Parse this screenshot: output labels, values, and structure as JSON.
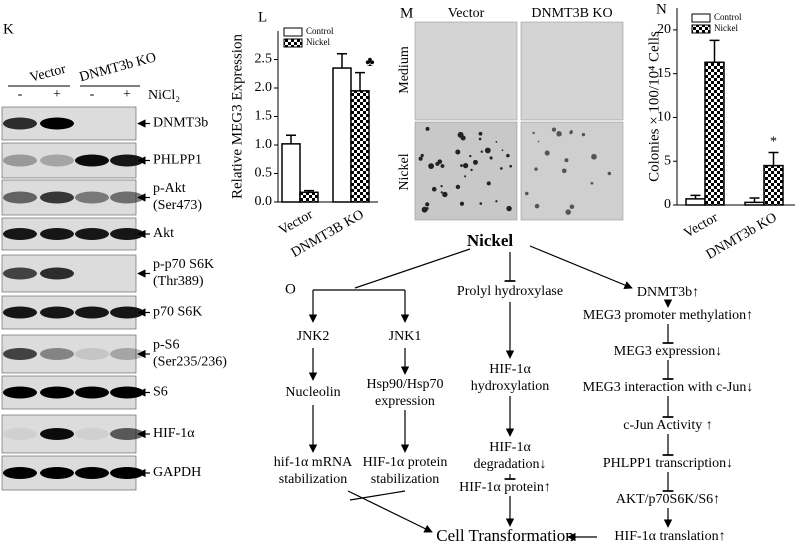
{
  "panel_labels": [
    "K",
    "L",
    "M",
    "N",
    "O"
  ],
  "blot": {
    "groups": [
      "Vector",
      "DNMT3b KO"
    ],
    "treatment": "NiCl₂",
    "lanes": [
      "-",
      "+",
      "-",
      "+"
    ],
    "rows": [
      [
        "DNMT3b"
      ],
      [
        "PHLPP1"
      ],
      [
        "p-Akt",
        "(Ser473)"
      ],
      [
        "Akt"
      ],
      [
        "p-p70 S6K",
        "(Thr389)"
      ],
      [
        "p70 S6K"
      ],
      [
        "p-S6",
        "(Ser235/236)"
      ],
      [
        "S6"
      ],
      [
        "HIF-1α"
      ],
      [
        "GAPDH"
      ]
    ]
  },
  "micrographs": {
    "columns": [
      "Vector",
      "DNMT3B KO"
    ],
    "rows": [
      "Medium",
      "Nickel"
    ]
  },
  "diagram": {
    "nodes": [
      [
        "Nickel"
      ],
      [
        "JNK2"
      ],
      [
        "JNK1"
      ],
      [
        "Nucleolin"
      ],
      [
        "Hsp90/Hsp70",
        "expression"
      ],
      [
        "hif-1α mRNA",
        "stabilization"
      ],
      [
        "HIF-1α protein",
        "stabilization"
      ],
      [
        "Prolyl hydroxylase"
      ],
      [
        "HIF-1α",
        "hydroxylation"
      ],
      [
        "HIF-1α",
        "degradation↓"
      ],
      [
        "HIF-1α protein↑"
      ],
      [
        "DNMT3b↑"
      ],
      [
        "MEG3 promoter methylation↑"
      ],
      [
        "MEG3 expression↓"
      ],
      [
        "MEG3 interaction with c-Jun↓"
      ],
      [
        "c-Jun Activity ↑"
      ],
      [
        "PHLPP1 transcription↓"
      ],
      [
        "AKT/p70S6K/S6↑"
      ],
      [
        "HIF-1α translation↑"
      ],
      [
        "Cell Transformation"
      ]
    ]
  },
  "chart_data": [
    {
      "type": "bar",
      "ylabel": "Relative MEG3 Expression",
      "categories": [
        "Vector",
        "DNMT3B KO"
      ],
      "series": [
        {
          "name": "Control",
          "color": "#ffffff",
          "values": [
            1.02,
            2.35
          ],
          "errors": [
            0.15,
            0.25
          ]
        },
        {
          "name": "Nickel",
          "color": "#000000",
          "pattern": "checkered",
          "values": [
            0.17,
            1.95
          ],
          "errors": [
            0.03,
            0.32
          ]
        }
      ],
      "ylim": [
        0,
        3
      ],
      "yticks": [
        {
          "value": 0,
          "label": "0.0"
        },
        0.5,
        {
          "value": 1,
          "label": "1.0"
        },
        1.5,
        {
          "value": 2,
          "label": "2.0"
        },
        2.5
      ],
      "annotations": [
        "♣"
      ]
    },
    {
      "type": "bar",
      "ylabel": "Colonies × 100/10⁴ Cells",
      "categories": [
        "Vector",
        "DNMT3b KO"
      ],
      "series": [
        {
          "name": "Control",
          "color": "#ffffff",
          "values": [
            0.7,
            0.3
          ],
          "errors": [
            0.4,
            0.5
          ]
        },
        {
          "name": "Nickel",
          "color": "#000000",
          "pattern": "checkered",
          "values": [
            16.3,
            4.5
          ],
          "errors": [
            2.5,
            1.5
          ]
        }
      ],
      "ylim": [
        0,
        22.5
      ],
      "yticks": [
        0,
        5,
        10,
        15,
        20
      ],
      "annotations": [
        "*"
      ]
    }
  ]
}
